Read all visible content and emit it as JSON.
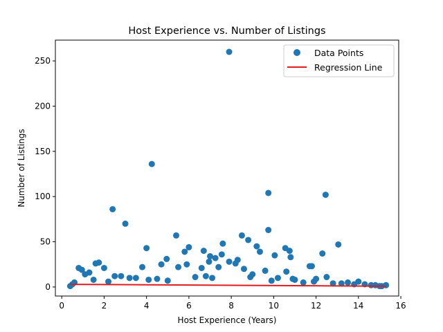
{
  "chart_data": {
    "type": "scatter",
    "title": "Host Experience vs. Number of Listings",
    "xlabel": "Host Experience (Years)",
    "ylabel": "Number of Listings",
    "xlim": [
      -0.3,
      15.9
    ],
    "ylim": [
      -10,
      273
    ],
    "xticks": [
      0,
      2,
      4,
      6,
      8,
      10,
      12,
      14,
      16
    ],
    "yticks": [
      0,
      50,
      100,
      150,
      200,
      250
    ],
    "grid": false,
    "legend": {
      "placement": "top-right",
      "entries": [
        "Data Points",
        "Regression Line"
      ]
    },
    "colors": {
      "points": "#1f77b4",
      "regression": "#e31a1c"
    },
    "series": [
      {
        "name": "Data Points",
        "kind": "scatter",
        "x": [
          7.9,
          4.25,
          9.75,
          12.45,
          2.4,
          3.0,
          13.05,
          9.75,
          5.4,
          8.5,
          8.8,
          4.0,
          6.0,
          9.2,
          10.55,
          10.75,
          6.7,
          9.35,
          7.6,
          7.55,
          5.8,
          10.05,
          7.0,
          8.3,
          12.3,
          7.25,
          10.8,
          4.95,
          5.9,
          6.95,
          8.2,
          11.8,
          11.7,
          9.6,
          7.9,
          8.6,
          4.7,
          5.5,
          7.4,
          6.6,
          10.6,
          12.5,
          3.8,
          2.0,
          1.6,
          1.75,
          0.8,
          0.95,
          1.3,
          1.1,
          2.5,
          3.5,
          4.5,
          6.3,
          9.0,
          10.2,
          11.0,
          12.0,
          13.5,
          14.0,
          14.3,
          14.8,
          15.1,
          15.3,
          0.4,
          0.6,
          1.5,
          2.8,
          3.2,
          5.0,
          6.8,
          8.9,
          10.9,
          11.9,
          12.8,
          13.8,
          15.0,
          0.5,
          2.2,
          4.1,
          7.1,
          9.9,
          11.4,
          13.2,
          14.6
        ],
        "y": [
          260,
          136,
          104,
          102,
          86,
          70,
          47,
          63,
          57,
          57,
          52,
          43,
          44,
          45,
          43,
          40,
          40,
          39,
          48,
          36,
          39,
          35,
          34,
          30,
          37,
          32,
          33,
          31,
          25,
          28,
          26,
          23,
          23,
          18,
          28,
          20,
          25,
          22,
          22,
          21,
          17,
          11,
          22,
          21,
          26,
          27,
          21,
          19,
          16,
          14,
          12,
          10,
          9,
          11,
          14,
          10,
          8,
          9,
          5,
          6,
          3,
          2,
          1,
          2,
          1,
          5,
          8,
          12,
          10,
          7,
          12,
          11,
          9,
          6,
          4,
          3,
          1,
          3,
          6,
          8,
          10,
          7,
          5,
          4,
          2
        ]
      },
      {
        "name": "Regression Line",
        "kind": "line",
        "x": [
          0.4,
          15.3
        ],
        "y": [
          2.9,
          0.9
        ]
      }
    ]
  }
}
